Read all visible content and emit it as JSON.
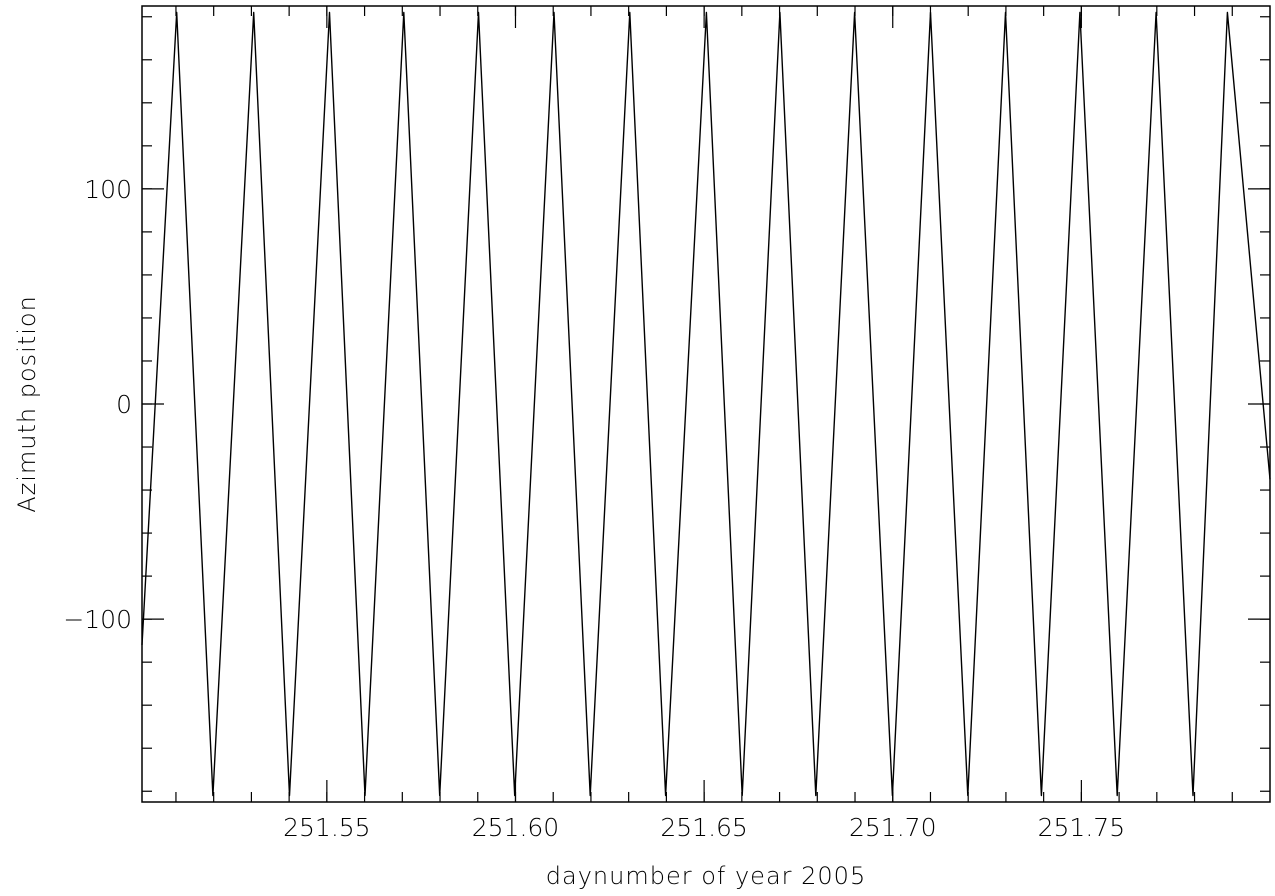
{
  "chart_data": {
    "type": "line",
    "xlabel": "daynumber of year 2005",
    "ylabel": "Azimuth position",
    "xlim": [
      251.501,
      251.8
    ],
    "ylim": [
      -185,
      185
    ],
    "x_ticks": [
      251.55,
      251.6,
      251.65,
      251.7,
      251.75
    ],
    "x_tick_labels": [
      "251.55",
      "251.60",
      "251.65",
      "251.70",
      "251.75"
    ],
    "y_ticks": [
      -100,
      0,
      100
    ],
    "y_tick_labels": [
      "−100",
      "0",
      "100"
    ],
    "x_minor_step": 0.01,
    "y_minor_step": 20,
    "grid": false,
    "line_color": "#000000",
    "series": [
      {
        "x": [
          251.501,
          251.5102,
          251.5198,
          251.5306,
          251.5401,
          251.5507,
          251.5601,
          251.5704,
          251.5799,
          251.5902,
          251.5998,
          251.6102,
          251.6198,
          251.6303,
          251.6398,
          251.6506,
          251.6601,
          251.6701,
          251.6796,
          251.6899,
          251.6999,
          251.71,
          251.7199,
          251.7299,
          251.7394,
          251.7496,
          251.7595,
          251.7698,
          251.7796,
          251.7887,
          251.8
        ],
        "y": [
          -112,
          182,
          -182,
          182,
          -182,
          182,
          -182,
          182,
          -182,
          182,
          -182,
          182,
          -182,
          182,
          -182,
          182,
          -182,
          182,
          -182,
          182,
          -182,
          182,
          -182,
          182,
          -182,
          182,
          -182,
          182,
          -182,
          182,
          -35
        ]
      }
    ]
  }
}
